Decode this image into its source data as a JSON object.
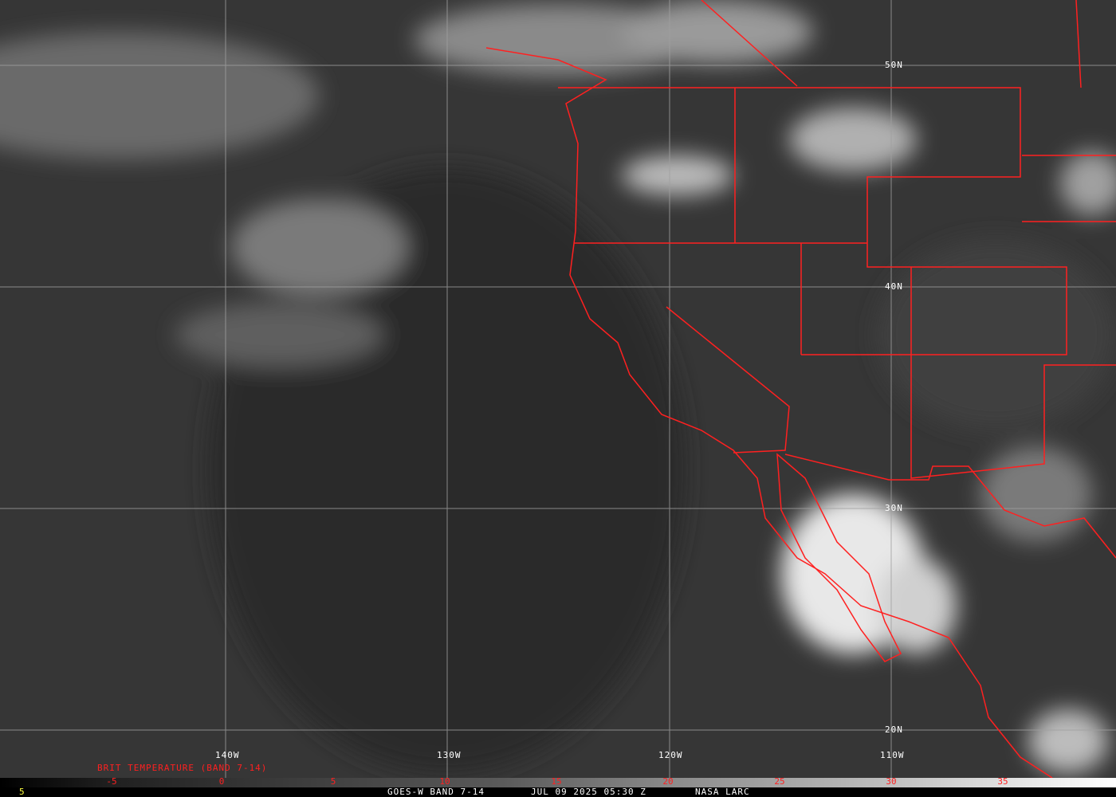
{
  "map": {
    "longitude_labels": [
      "140W",
      "130W",
      "120W",
      "110W"
    ],
    "latitude_labels": [
      "50N",
      "40N",
      "30N",
      "20N"
    ],
    "border_color": "#ff2020",
    "grid_color": "#a0a0a0"
  },
  "legend": {
    "title": "BRIT TEMPERATURE (BAND 7-14)",
    "ticks": [
      "-5",
      "0",
      "5",
      "10",
      "15",
      "20",
      "25",
      "30",
      "35"
    ],
    "left_value": "5"
  },
  "footer": {
    "satellite": "GOES-W BAND 7-14",
    "datetime": "JUL 09 2025 05:30 Z",
    "source": "NASA LARC"
  }
}
